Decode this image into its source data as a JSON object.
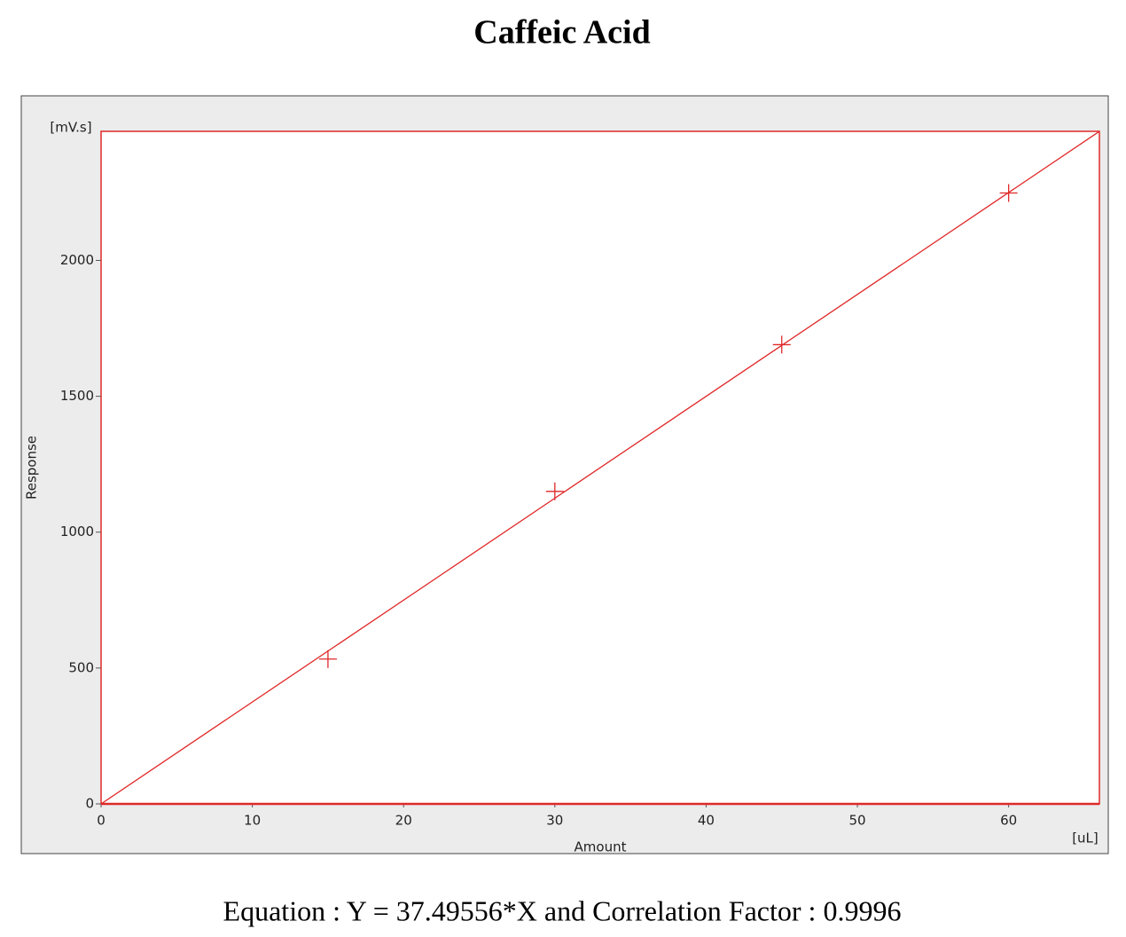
{
  "chart_data": {
    "type": "scatter",
    "title": "Caffeic Acid",
    "x_label": "Amount",
    "y_label": "Response",
    "x_unit": "[uL]",
    "y_unit": "[mV.s]",
    "series": [
      {
        "x": [
          15,
          30,
          45,
          60
        ],
        "values": [
          533,
          1150,
          1690,
          2248
        ],
        "color": "#e02828"
      }
    ],
    "fit_line": {
      "x": [
        0,
        66
      ],
      "values": [
        0,
        2474.71
      ],
      "color": "#e02828"
    },
    "xlim": [
      0,
      66
    ],
    "ylim": [
      0,
      2475
    ],
    "xticks": [
      0,
      10,
      20,
      30,
      40,
      50,
      60
    ],
    "yticks": [
      0,
      500,
      1000,
      1500,
      2000
    ],
    "annotation": "Equation : Y = 37.49556*X and Correlation Factor : 0.9996"
  }
}
